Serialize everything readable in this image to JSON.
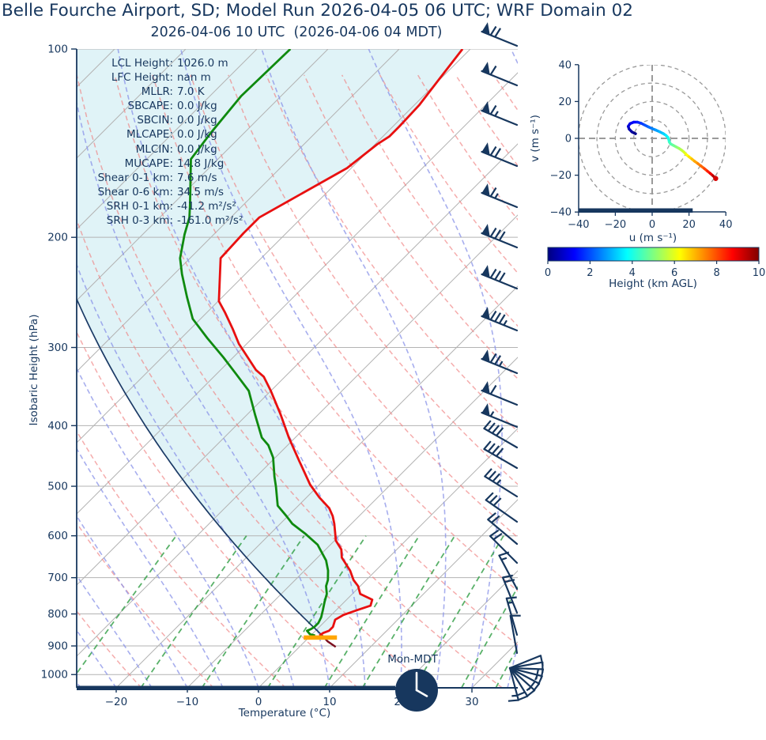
{
  "title": "Belle Fourche Airport, SD; Model Run 2026-04-05 06 UTC; WRF Domain 02",
  "subtitle": "2026-04-06 10 UTC  (2026-04-06 04 MDT)",
  "colors": {
    "accent_navy": "#17375e",
    "temperature": "#e81010",
    "dewpoint": "#0f8a0f",
    "parcel": "#1b3a66",
    "cin_fill": "#e0f3f7",
    "lcl_marker": "#ffa500",
    "isotherm": "#b3b3b3",
    "isobar": "#b3b3b3",
    "dry_adiabat": "#f08080",
    "moist_adiabat": "#8a93e8",
    "mixing_ratio": "#2f9e44",
    "surface_tail": "#7c0f1f",
    "hodo_grid": "#9a9a9a",
    "trace_end_dot": "#d60000"
  },
  "chart_data": [
    {
      "id": "skewt",
      "type": "line",
      "xlabel": "Temperature (°C)",
      "ylabel": "Isobaric Height (hPa)",
      "x_ticks": [
        -20,
        -10,
        0,
        10,
        20,
        30
      ],
      "y_ticks": [
        100,
        200,
        300,
        400,
        500,
        600,
        700,
        800,
        900,
        1000
      ],
      "ylim": [
        1050,
        100
      ],
      "xlim_bottom": [
        -25.6,
        36.4
      ],
      "skew_deg": 45,
      "grid": true,
      "stats": [
        {
          "label": "LCL Height:",
          "value": "1026.0 m"
        },
        {
          "label": "LFC Height:",
          "value": "nan m"
        },
        {
          "label": "MLLR:",
          "value": "7.0 K"
        },
        {
          "label": "SBCAPE:",
          "value": "0.0 J/kg"
        },
        {
          "label": "SBCIN:",
          "value": "0.0 J/kg"
        },
        {
          "label": "MLCAPE:",
          "value": "0.0 J/kg"
        },
        {
          "label": "MLCIN:",
          "value": "0.0 J/kg"
        },
        {
          "label": "MUCAPE:",
          "value": "14.8 J/kg"
        },
        {
          "label": "Shear 0-1 km:",
          "value": "7.6 m/s"
        },
        {
          "label": "Shear 0-6 km:",
          "value": "34.5 m/s"
        },
        {
          "label": "SRH 0-1 km:",
          "value": "-41.2 m²/s²"
        },
        {
          "label": "SRH 0-3 km:",
          "value": "-161.0 m²/s²"
        }
      ],
      "temperature_profile": [
        {
          "p": 100,
          "t": -61.1
        },
        {
          "p": 111,
          "t": -60.2
        },
        {
          "p": 123,
          "t": -59.3
        },
        {
          "p": 133,
          "t": -59.1
        },
        {
          "p": 138,
          "t": -59.1
        },
        {
          "p": 142,
          "t": -59.7
        },
        {
          "p": 155,
          "t": -60.6
        },
        {
          "p": 186,
          "t": -66.0
        },
        {
          "p": 197,
          "t": -66.0
        },
        {
          "p": 216,
          "t": -65.7
        },
        {
          "p": 237,
          "t": -62.3
        },
        {
          "p": 253,
          "t": -59.9
        },
        {
          "p": 264,
          "t": -57.4
        },
        {
          "p": 280,
          "t": -54.1
        },
        {
          "p": 296,
          "t": -51.1
        },
        {
          "p": 326,
          "t": -45.0
        },
        {
          "p": 334,
          "t": -43.0
        },
        {
          "p": 352,
          "t": -40.0
        },
        {
          "p": 384,
          "t": -35.3
        },
        {
          "p": 418,
          "t": -30.9
        },
        {
          "p": 456,
          "t": -26.1
        },
        {
          "p": 497,
          "t": -21.3
        },
        {
          "p": 521,
          "t": -18.2
        },
        {
          "p": 542,
          "t": -15.3
        },
        {
          "p": 558,
          "t": -13.7
        },
        {
          "p": 574,
          "t": -12.4
        },
        {
          "p": 611,
          "t": -9.8
        },
        {
          "p": 631,
          "t": -7.8
        },
        {
          "p": 650,
          "t": -6.6
        },
        {
          "p": 682,
          "t": -3.6
        },
        {
          "p": 706,
          "t": -1.8
        },
        {
          "p": 722,
          "t": -0.3
        },
        {
          "p": 743,
          "t": 1.1
        },
        {
          "p": 759,
          "t": 3.6
        },
        {
          "p": 776,
          "t": 4.2
        },
        {
          "p": 788,
          "t": 3.0
        },
        {
          "p": 803,
          "t": 1.7
        },
        {
          "p": 817,
          "t": 1.2
        },
        {
          "p": 839,
          "t": 1.9
        },
        {
          "p": 851,
          "t": 1.9
        },
        {
          "p": 858,
          "t": 1.4
        },
        {
          "p": 866,
          "t": 1.2
        }
      ],
      "dewpoint_profile": [
        {
          "p": 100,
          "t": -85.3
        },
        {
          "p": 119,
          "t": -85.6
        },
        {
          "p": 136,
          "t": -84.7
        },
        {
          "p": 150,
          "t": -83.8
        },
        {
          "p": 177,
          "t": -77.6
        },
        {
          "p": 186,
          "t": -75.8
        },
        {
          "p": 198,
          "t": -74.1
        },
        {
          "p": 216,
          "t": -71.4
        },
        {
          "p": 229,
          "t": -68.9
        },
        {
          "p": 249,
          "t": -65.0
        },
        {
          "p": 270,
          "t": -61.1
        },
        {
          "p": 290,
          "t": -56.3
        },
        {
          "p": 311,
          "t": -51.4
        },
        {
          "p": 330,
          "t": -47.4
        },
        {
          "p": 352,
          "t": -43.1
        },
        {
          "p": 384,
          "t": -38.9
        },
        {
          "p": 418,
          "t": -34.7
        },
        {
          "p": 430,
          "t": -32.7
        },
        {
          "p": 450,
          "t": -30.3
        },
        {
          "p": 483,
          "t": -27.4
        },
        {
          "p": 501,
          "t": -25.8
        },
        {
          "p": 537,
          "t": -22.9
        },
        {
          "p": 558,
          "t": -20.2
        },
        {
          "p": 574,
          "t": -18.3
        },
        {
          "p": 596,
          "t": -15.0
        },
        {
          "p": 620,
          "t": -11.8
        },
        {
          "p": 657,
          "t": -8.4
        },
        {
          "p": 682,
          "t": -6.7
        },
        {
          "p": 706,
          "t": -5.4
        },
        {
          "p": 722,
          "t": -4.8
        },
        {
          "p": 743,
          "t": -3.6
        },
        {
          "p": 765,
          "t": -2.8
        },
        {
          "p": 788,
          "t": -1.9
        },
        {
          "p": 810,
          "t": -1.1
        },
        {
          "p": 827,
          "t": -0.7
        },
        {
          "p": 839,
          "t": -0.7
        },
        {
          "p": 846,
          "t": -0.9
        },
        {
          "p": 851,
          "t": -1.2
        },
        {
          "p": 862,
          "t": -0.3
        },
        {
          "p": 866,
          "t": 0.6
        }
      ],
      "parcel": {
        "surface_p": 866,
        "surface_t": 1.6
      },
      "surface_tail": [
        {
          "p": 866,
          "t": 1.6
        },
        {
          "p": 885,
          "t": 3.2
        },
        {
          "p": 903,
          "t": 5.1
        }
      ],
      "lcl_marker": {
        "p": 872,
        "t": 1.6
      },
      "mixing_ratio_lines_gkg": [
        0.4,
        1,
        2,
        4,
        7,
        10,
        16,
        24,
        32
      ],
      "dry_adiabats_c": {
        "start": -30,
        "end": 150,
        "step": 10
      },
      "moist_adiabats_c": {
        "start": -60,
        "end": 40,
        "step": 5
      },
      "clock": {
        "label": "Mon-MDT",
        "time": "4:00"
      },
      "wind_barbs": [
        {
          "y": 58,
          "pennants": 1,
          "full": 2,
          "half": 0
        },
        {
          "y": 108,
          "pennants": 1,
          "full": 1,
          "half": 0
        },
        {
          "y": 158,
          "pennants": 1,
          "full": 1,
          "half": 1
        },
        {
          "y": 210,
          "pennants": 1,
          "full": 2,
          "half": 0
        },
        {
          "y": 262,
          "pennants": 1,
          "full": 1,
          "half": 1
        },
        {
          "y": 313,
          "pennants": 1,
          "full": 3,
          "half": 0
        },
        {
          "y": 365,
          "pennants": 1,
          "full": 3,
          "half": 0
        },
        {
          "y": 418,
          "pennants": 1,
          "full": 3,
          "half": 1
        },
        {
          "y": 472,
          "pennants": 1,
          "full": 2,
          "half": 1
        },
        {
          "y": 512,
          "pennants": 1,
          "full": 1,
          "half": 0
        },
        {
          "y": 540,
          "pennants": 1,
          "full": 0,
          "half": 1
        },
        {
          "y": 566,
          "pennants": 0,
          "full": 4,
          "half": 0,
          "angle": 150
        },
        {
          "y": 592,
          "pennants": 0,
          "full": 4,
          "half": 0,
          "angle": 150
        },
        {
          "y": 628,
          "pennants": 0,
          "full": 3,
          "half": 1,
          "angle": 148
        },
        {
          "y": 660,
          "pennants": 0,
          "full": 3,
          "half": 0,
          "angle": 145
        },
        {
          "y": 688,
          "pennants": 0,
          "full": 2,
          "half": 0,
          "angle": 140
        },
        {
          "y": 712,
          "pennants": 0,
          "full": 2,
          "half": 0,
          "angle": 135
        },
        {
          "y": 745,
          "pennants": 0,
          "full": 1,
          "half": 1,
          "angle": 118
        },
        {
          "y": 775,
          "pennants": 0,
          "full": 2,
          "half": 0,
          "angle": 112
        },
        {
          "y": 803,
          "pennants": 0,
          "full": 1,
          "half": 1,
          "angle": 106
        },
        {
          "y": 826,
          "pennants": 0,
          "full": 1,
          "half": 0,
          "angle": 100
        }
      ],
      "surface_fan": {
        "x": 645,
        "y": 845,
        "len": 42,
        "barbs": [
          {
            "angle": -75,
            "full": 1,
            "half": 1
          },
          {
            "angle": -58,
            "full": 2,
            "half": 0
          },
          {
            "angle": -42,
            "full": 1,
            "half": 1
          },
          {
            "angle": -28,
            "full": 2,
            "half": 0
          },
          {
            "angle": -14,
            "full": 1,
            "half": 1
          },
          {
            "angle": -2,
            "full": 2,
            "half": 0
          },
          {
            "angle": 10,
            "full": 1,
            "half": 0
          },
          {
            "angle": 22,
            "full": 1,
            "half": 0
          }
        ]
      }
    },
    {
      "id": "hodograph",
      "type": "line",
      "xlabel": "u (m s⁻¹)",
      "ylabel": "v (m s⁻¹)",
      "xlim": [
        -40,
        40
      ],
      "ylim": [
        -40,
        40
      ],
      "x_ticks": [
        -40,
        -20,
        0,
        20,
        40
      ],
      "y_ticks": [
        40,
        20,
        0,
        -20,
        -40
      ],
      "ring_radii": [
        10,
        20,
        30,
        40
      ],
      "ground_bar_u": [
        -40,
        22
      ],
      "trace": [
        {
          "u": -9,
          "v": 2.5,
          "h": 0
        },
        {
          "u": -11,
          "v": 3.5,
          "h": 0.2
        },
        {
          "u": -12.5,
          "v": 5,
          "h": 0.45
        },
        {
          "u": -13,
          "v": 6.5,
          "h": 0.7
        },
        {
          "u": -12,
          "v": 8,
          "h": 0.95
        },
        {
          "u": -10,
          "v": 8.8,
          "h": 1.2
        },
        {
          "u": -8,
          "v": 8.8,
          "h": 1.45
        },
        {
          "u": -6,
          "v": 8.2,
          "h": 1.7
        },
        {
          "u": -4,
          "v": 7.2,
          "h": 1.95
        },
        {
          "u": -2,
          "v": 6.2,
          "h": 2.2
        },
        {
          "u": 0,
          "v": 5.3,
          "h": 2.45
        },
        {
          "u": 2,
          "v": 4.5,
          "h": 2.7
        },
        {
          "u": 4,
          "v": 3.6,
          "h": 2.95
        },
        {
          "u": 6,
          "v": 2.6,
          "h": 3.2
        },
        {
          "u": 7.5,
          "v": 1.6,
          "h": 3.45
        },
        {
          "u": 8.5,
          "v": 0.6,
          "h": 3.7
        },
        {
          "u": 9,
          "v": -0.6,
          "h": 3.95
        },
        {
          "u": 9.3,
          "v": -2,
          "h": 4.2
        },
        {
          "u": 10,
          "v": -3,
          "h": 4.45
        },
        {
          "u": 11.5,
          "v": -3.8,
          "h": 4.7
        },
        {
          "u": 13,
          "v": -4.6,
          "h": 4.95
        },
        {
          "u": 14.5,
          "v": -5.4,
          "h": 5.2
        },
        {
          "u": 16,
          "v": -6.4,
          "h": 5.5
        },
        {
          "u": 17.3,
          "v": -7.5,
          "h": 5.8
        },
        {
          "u": 18.5,
          "v": -8.8,
          "h": 6.1
        },
        {
          "u": 20,
          "v": -10,
          "h": 6.4
        },
        {
          "u": 21.5,
          "v": -11.2,
          "h": 6.7
        },
        {
          "u": 23,
          "v": -12.4,
          "h": 7.0
        },
        {
          "u": 24.8,
          "v": -13.7,
          "h": 7.3
        },
        {
          "u": 26.5,
          "v": -15,
          "h": 7.6
        },
        {
          "u": 28.3,
          "v": -16.4,
          "h": 7.9
        },
        {
          "u": 30,
          "v": -17.8,
          "h": 8.3
        },
        {
          "u": 31.5,
          "v": -19,
          "h": 8.7
        },
        {
          "u": 33,
          "v": -20.3,
          "h": 9.2
        },
        {
          "u": 34,
          "v": -21.3,
          "h": 9.7
        },
        {
          "u": 34.5,
          "v": -21.8,
          "h": 10
        }
      ],
      "colorbar": {
        "label": "Height (km AGL)",
        "ticks": [
          0,
          2,
          4,
          6,
          8,
          10
        ],
        "min": 0,
        "max": 10,
        "colormap": "jet"
      }
    }
  ]
}
